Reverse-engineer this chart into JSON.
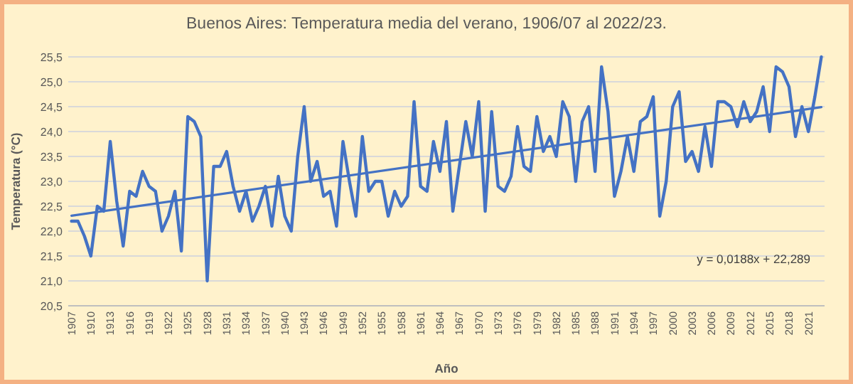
{
  "chart_data": {
    "type": "line",
    "title": "Buenos Aires: Temperatura media del verano, 1906/07 al 2022/23.",
    "xlabel": "Año",
    "ylabel": "Temperatura (°C)",
    "x": [
      1907,
      1908,
      1909,
      1910,
      1911,
      1912,
      1913,
      1914,
      1915,
      1916,
      1917,
      1918,
      1919,
      1920,
      1921,
      1922,
      1923,
      1924,
      1925,
      1926,
      1927,
      1928,
      1929,
      1930,
      1931,
      1932,
      1933,
      1934,
      1935,
      1936,
      1937,
      1938,
      1939,
      1940,
      1941,
      1942,
      1943,
      1944,
      1945,
      1946,
      1947,
      1948,
      1949,
      1950,
      1951,
      1952,
      1953,
      1954,
      1955,
      1956,
      1957,
      1958,
      1959,
      1960,
      1961,
      1962,
      1963,
      1964,
      1965,
      1966,
      1967,
      1968,
      1969,
      1970,
      1971,
      1972,
      1973,
      1974,
      1975,
      1976,
      1977,
      1978,
      1979,
      1980,
      1981,
      1982,
      1983,
      1984,
      1985,
      1986,
      1987,
      1988,
      1989,
      1990,
      1991,
      1992,
      1993,
      1994,
      1995,
      1996,
      1997,
      1998,
      1999,
      2000,
      2001,
      2002,
      2003,
      2004,
      2005,
      2006,
      2007,
      2008,
      2009,
      2010,
      2011,
      2012,
      2013,
      2014,
      2015,
      2016,
      2017,
      2018,
      2019,
      2020,
      2021,
      2022,
      2023
    ],
    "series": [
      {
        "color": "#4472c4",
        "values": [
          22.2,
          22.2,
          21.9,
          21.5,
          22.5,
          22.4,
          23.8,
          22.6,
          21.7,
          22.8,
          22.7,
          23.2,
          22.9,
          22.8,
          22.0,
          22.3,
          22.8,
          21.6,
          24.3,
          24.2,
          23.9,
          21.0,
          23.3,
          23.3,
          23.6,
          22.9,
          22.4,
          22.8,
          22.2,
          22.5,
          22.9,
          22.1,
          23.1,
          22.3,
          22.0,
          23.5,
          24.5,
          23.0,
          23.4,
          22.7,
          22.8,
          22.1,
          23.8,
          23.0,
          22.3,
          23.9,
          22.8,
          23.0,
          23.0,
          22.3,
          22.8,
          22.5,
          22.7,
          24.6,
          22.9,
          22.8,
          23.8,
          23.2,
          24.2,
          22.4,
          23.3,
          24.2,
          23.5,
          24.6,
          22.4,
          24.4,
          22.9,
          22.8,
          23.1,
          24.1,
          23.3,
          23.2,
          24.3,
          23.6,
          23.9,
          23.5,
          24.6,
          24.3,
          23.0,
          24.2,
          24.5,
          23.2,
          25.3,
          24.4,
          22.7,
          23.2,
          23.9,
          23.2,
          24.2,
          24.3,
          24.7,
          22.3,
          23.0,
          24.5,
          24.8,
          23.4,
          23.6,
          23.2,
          24.1,
          23.3,
          24.6,
          24.6,
          24.5,
          24.1,
          24.6,
          24.2,
          24.4,
          24.9,
          24.0,
          25.3,
          25.2,
          24.9,
          23.9,
          24.5,
          24.0,
          24.7,
          25.5
        ]
      },
      {
        "type": "line",
        "color": "#4472c4",
        "x": [
          1907,
          2023
        ],
        "values": [
          22.31,
          24.49
        ]
      }
    ],
    "annotations": [
      "y = 0,0188x + 22,289"
    ],
    "xlim": [
      1906.5,
      2023.5
    ],
    "xticks": [
      1907,
      1910,
      1913,
      1916,
      1919,
      1922,
      1925,
      1928,
      1931,
      1934,
      1937,
      1940,
      1943,
      1946,
      1949,
      1952,
      1955,
      1958,
      1961,
      1964,
      1967,
      1970,
      1973,
      1976,
      1979,
      1982,
      1985,
      1988,
      1991,
      1994,
      1997,
      2000,
      2003,
      2006,
      2009,
      2012,
      2015,
      2018,
      2021
    ],
    "ylim": [
      20.5,
      25.5
    ],
    "yticks": [
      {
        "value": 20.5,
        "label": "20,5"
      },
      {
        "value": 21,
        "label": "21,0"
      },
      {
        "value": 21.5,
        "label": "21,5"
      },
      {
        "value": 22,
        "label": "22,0"
      },
      {
        "value": 22.5,
        "label": "22,5"
      },
      {
        "value": 23,
        "label": "23,0"
      },
      {
        "value": 23.5,
        "label": "23,5"
      },
      {
        "value": 24,
        "label": "24,0"
      },
      {
        "value": 24.5,
        "label": "24,5"
      },
      {
        "value": 25,
        "label": "25,0"
      },
      {
        "value": 25.5,
        "label": "25,5"
      }
    ],
    "grid": "y"
  }
}
